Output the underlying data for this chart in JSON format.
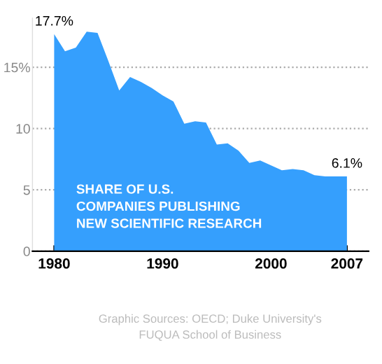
{
  "chart_data": {
    "type": "area",
    "title": "SHARE OF U.S.\nCOMPANIES PUBLISHING\nNEW SCIENTIFIC RESEARCH",
    "x": [
      1980,
      1981,
      1982,
      1983,
      1984,
      1985,
      1986,
      1987,
      1988,
      1989,
      1990,
      1991,
      1992,
      1993,
      1994,
      1995,
      1996,
      1997,
      1998,
      1999,
      2000,
      2001,
      2002,
      2003,
      2004,
      2005,
      2006,
      2007
    ],
    "values": [
      17.7,
      16.3,
      16.6,
      17.9,
      17.8,
      15.5,
      13.1,
      14.2,
      13.8,
      13.3,
      12.7,
      12.2,
      10.4,
      10.6,
      10.5,
      8.7,
      8.8,
      8.2,
      7.2,
      7.4,
      7.0,
      6.6,
      6.7,
      6.6,
      6.2,
      6.1,
      6.1,
      6.1
    ],
    "value_labels": [
      "17.7%",
      null,
      null,
      null,
      null,
      null,
      null,
      null,
      null,
      null,
      null,
      null,
      null,
      null,
      null,
      null,
      null,
      null,
      null,
      null,
      null,
      null,
      null,
      null,
      null,
      null,
      null,
      "6.1%"
    ],
    "color": "#359ffd",
    "xlim": [
      1978,
      2009
    ],
    "xticks": [
      1980,
      1990,
      2000,
      2007
    ],
    "ylim": [
      0,
      19
    ],
    "yticks": [
      0,
      5,
      10,
      {
        "value": 15,
        "label": "15%"
      }
    ],
    "grid": "y",
    "annotations": [
      "Graphic Sources: OECD; Duke University's\nFUQUA School of Business"
    ]
  }
}
